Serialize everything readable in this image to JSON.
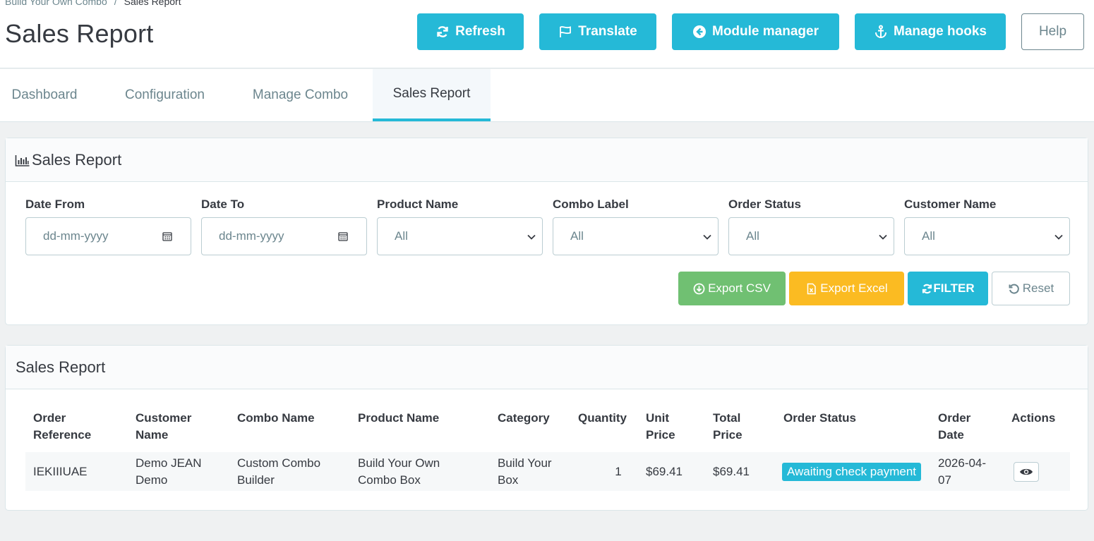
{
  "breadcrumb": {
    "parent": "Build Your Own Combo",
    "separator": "/",
    "current": "Sales Report"
  },
  "header": {
    "title": "Sales Report"
  },
  "toolbar": {
    "refresh": "Refresh",
    "translate": "Translate",
    "module_manager": "Module manager",
    "manage_hooks": "Manage hooks",
    "help": "Help"
  },
  "tabs": [
    {
      "label": "Dashboard",
      "active": false
    },
    {
      "label": "Configuration",
      "active": false
    },
    {
      "label": "Manage Combo",
      "active": false
    },
    {
      "label": "Sales Report",
      "active": true
    }
  ],
  "filter_panel": {
    "title": "Sales Report",
    "fields": {
      "date_from": {
        "label": "Date From",
        "placeholder": "dd-mm-yyyy"
      },
      "date_to": {
        "label": "Date To",
        "placeholder": "dd-mm-yyyy"
      },
      "product_name": {
        "label": "Product Name",
        "value": "All"
      },
      "combo_label": {
        "label": "Combo Label",
        "value": "All"
      },
      "order_status": {
        "label": "Order Status",
        "value": "All"
      },
      "customer_name": {
        "label": "Customer Name",
        "value": "All"
      }
    },
    "buttons": {
      "export_csv": "Export CSV",
      "export_excel": "Export Excel",
      "filter": "FILTER",
      "reset": "Reset"
    }
  },
  "report_panel": {
    "title": "Sales Report",
    "columns": {
      "order_reference_1": "Order",
      "order_reference_2": "Reference",
      "customer_name_1": "Customer",
      "customer_name_2": "Name",
      "combo_name": "Combo Name",
      "product_name": "Product Name",
      "category": "Category",
      "quantity": "Quantity",
      "unit_price_1": "Unit",
      "unit_price_2": "Price",
      "total_price_1": "Total",
      "total_price_2": "Price",
      "order_status": "Order Status",
      "order_date_1": "Order",
      "order_date_2": "Date",
      "actions": "Actions"
    },
    "rows": [
      {
        "order_reference": "IEKIIIUAE",
        "customer_name_1": "Demo JEAN",
        "customer_name_2": "Demo",
        "combo_name_1": "Custom Combo",
        "combo_name_2": "Builder",
        "product_name_1": "Build Your Own",
        "product_name_2": "Combo Box",
        "category_1": "Build Your",
        "category_2": "Box",
        "quantity": "1",
        "unit_price": "$69.41",
        "total_price": "$69.41",
        "order_status": "Awaiting check payment",
        "order_date_1": "2026-04-",
        "order_date_2": "07"
      }
    ]
  },
  "colors": {
    "primary": "#25b9d7",
    "success": "#70c072",
    "warning": "#fbbb22",
    "text": "#363a41",
    "muted": "#6c868e"
  }
}
